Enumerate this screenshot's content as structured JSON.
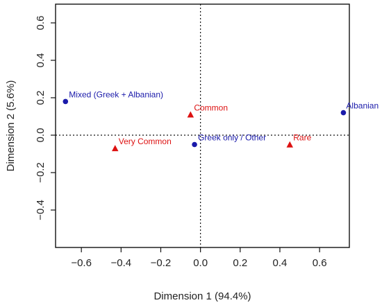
{
  "chart_data": {
    "type": "scatter",
    "title": "",
    "xlabel": "Dimension 1 (94.4%)",
    "ylabel": "Dimension 2 (5.6%)",
    "xlim": [
      -0.73,
      0.75
    ],
    "ylim": [
      -0.6,
      0.7
    ],
    "x_ticks": [
      -0.6,
      -0.4,
      -0.2,
      0.0,
      0.2,
      0.4,
      0.6
    ],
    "y_ticks": [
      -0.4,
      -0.2,
      0.0,
      0.2,
      0.4,
      0.6
    ],
    "x_tick_labels": [
      "−0.6",
      "−0.4",
      "−0.2",
      "0.0",
      "0.2",
      "0.4",
      "0.6"
    ],
    "y_tick_labels": [
      "−0.4",
      "−0.2",
      "0.0",
      "0.2",
      "0.4",
      "0.6"
    ],
    "reference_lines": {
      "x": 0,
      "y": 0,
      "style": "dotted"
    },
    "grid": false,
    "series": [
      {
        "marker": "circle",
        "color": "#1a1aaa",
        "points": [
          {
            "label": "Mixed (Greek + Albanian)",
            "x": -0.68,
            "y": 0.18
          },
          {
            "label": "Albanian",
            "x": 0.72,
            "y": 0.12
          },
          {
            "label": "Greek only / Other",
            "x": -0.03,
            "y": -0.05
          }
        ]
      },
      {
        "marker": "triangle",
        "color": "#dd1111",
        "points": [
          {
            "label": "Common",
            "x": -0.05,
            "y": 0.11
          },
          {
            "label": "Very Common",
            "x": -0.43,
            "y": -0.07
          },
          {
            "label": "Rare",
            "x": 0.45,
            "y": -0.05
          }
        ]
      }
    ]
  }
}
